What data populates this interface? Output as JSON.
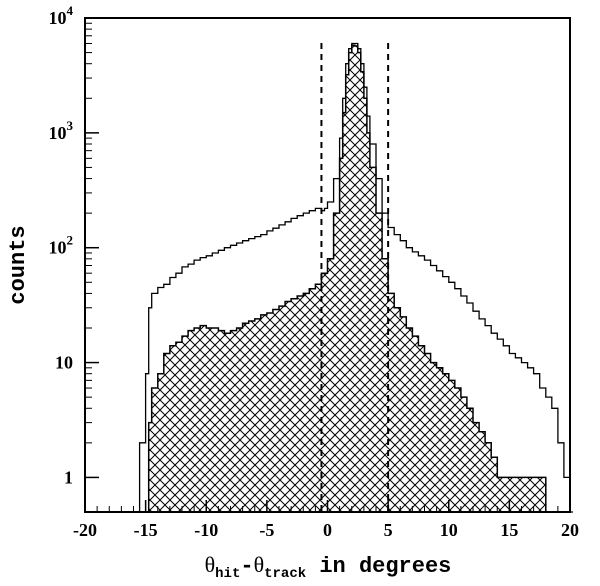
{
  "chart_data": {
    "type": "histogram",
    "title": "",
    "xlabel": {
      "theta1": "θ",
      "sub1": "hit",
      "dash": "-",
      "theta2": "θ",
      "sub2": "track",
      "suffix": " in degrees"
    },
    "ylabel": "counts",
    "xlim": [
      -20,
      20
    ],
    "ylim": [
      0.5,
      10000
    ],
    "yscale": "log",
    "x_tick_labels": [
      "-20",
      "-15",
      "-10",
      "-5",
      "0",
      "5",
      "10",
      "15",
      "20"
    ],
    "y_tick_labels": [
      {
        "value": 1,
        "base": "1",
        "exp": ""
      },
      {
        "value": 10,
        "base": "10",
        "exp": ""
      },
      {
        "value": 100,
        "base": "10",
        "exp": "2"
      },
      {
        "value": 1000,
        "base": "10",
        "exp": "3"
      },
      {
        "value": 10000,
        "base": "10",
        "exp": "4"
      }
    ],
    "cut_lines": [
      -0.5,
      5
    ],
    "bin_width": 0.25,
    "series": [
      {
        "fill": "none",
        "points": [
          [
            -16.0,
            0.5
          ],
          [
            -15.5,
            2
          ],
          [
            -15.0,
            8
          ],
          [
            -14.75,
            30
          ],
          [
            -14.5,
            40
          ],
          [
            -14.0,
            45
          ],
          [
            -13.5,
            48
          ],
          [
            -13.0,
            55
          ],
          [
            -12.5,
            60
          ],
          [
            -12.0,
            68
          ],
          [
            -11.5,
            72
          ],
          [
            -11.0,
            78
          ],
          [
            -10.5,
            82
          ],
          [
            -10.0,
            85
          ],
          [
            -9.5,
            90
          ],
          [
            -9.0,
            95
          ],
          [
            -8.5,
            100
          ],
          [
            -8.0,
            105
          ],
          [
            -7.5,
            110
          ],
          [
            -7.0,
            115
          ],
          [
            -6.5,
            120
          ],
          [
            -6.0,
            125
          ],
          [
            -5.5,
            130
          ],
          [
            -5.0,
            140
          ],
          [
            -4.5,
            148
          ],
          [
            -4.0,
            158
          ],
          [
            -3.5,
            168
          ],
          [
            -3.0,
            180
          ],
          [
            -2.5,
            190
          ],
          [
            -2.0,
            200
          ],
          [
            -1.5,
            210
          ],
          [
            -1.0,
            220
          ],
          [
            -0.5,
            210
          ],
          [
            -0.25,
            220
          ],
          [
            0.0,
            250
          ],
          [
            0.5,
            400
          ],
          [
            1.0,
            900
          ],
          [
            1.25,
            2000
          ],
          [
            1.5,
            4000
          ],
          [
            1.75,
            5400
          ],
          [
            2.0,
            6000
          ],
          [
            2.25,
            6000
          ],
          [
            2.5,
            5400
          ],
          [
            2.75,
            4000
          ],
          [
            3.0,
            2500
          ],
          [
            3.25,
            1400
          ],
          [
            3.5,
            800
          ],
          [
            4.0,
            400
          ],
          [
            4.5,
            200
          ],
          [
            5.0,
            150
          ],
          [
            5.5,
            130
          ],
          [
            6.0,
            115
          ],
          [
            6.5,
            100
          ],
          [
            7.0,
            92
          ],
          [
            7.5,
            85
          ],
          [
            8.0,
            78
          ],
          [
            8.5,
            70
          ],
          [
            9.0,
            63
          ],
          [
            9.5,
            56
          ],
          [
            10.0,
            50
          ],
          [
            10.5,
            44
          ],
          [
            11.0,
            38
          ],
          [
            11.5,
            33
          ],
          [
            12.0,
            28
          ],
          [
            12.5,
            24
          ],
          [
            13.0,
            21
          ],
          [
            13.5,
            18
          ],
          [
            14.0,
            16
          ],
          [
            14.5,
            14
          ],
          [
            15.0,
            12
          ],
          [
            15.5,
            11
          ],
          [
            16.0,
            10
          ],
          [
            16.5,
            9
          ],
          [
            17.0,
            8
          ],
          [
            17.5,
            6
          ],
          [
            18.0,
            5
          ],
          [
            18.5,
            4
          ],
          [
            19.0,
            2
          ],
          [
            19.5,
            1
          ],
          [
            20.0,
            0.5
          ]
        ]
      },
      {
        "fill": "crosshatch",
        "points": [
          [
            -15.0,
            0.5
          ],
          [
            -14.75,
            3
          ],
          [
            -14.5,
            6
          ],
          [
            -14.0,
            8
          ],
          [
            -13.5,
            12
          ],
          [
            -13.0,
            14
          ],
          [
            -12.5,
            15
          ],
          [
            -12.0,
            17
          ],
          [
            -11.5,
            19
          ],
          [
            -11.0,
            20
          ],
          [
            -10.5,
            21
          ],
          [
            -10.0,
            20
          ],
          [
            -9.5,
            20
          ],
          [
            -9.0,
            19
          ],
          [
            -8.5,
            18
          ],
          [
            -8.0,
            19
          ],
          [
            -7.5,
            20
          ],
          [
            -7.0,
            22
          ],
          [
            -6.5,
            23
          ],
          [
            -6.0,
            24
          ],
          [
            -5.5,
            26
          ],
          [
            -5.0,
            27
          ],
          [
            -4.5,
            29
          ],
          [
            -4.0,
            31
          ],
          [
            -3.5,
            34
          ],
          [
            -3.0,
            36
          ],
          [
            -2.5,
            38
          ],
          [
            -2.0,
            40
          ],
          [
            -1.5,
            44
          ],
          [
            -1.0,
            48
          ],
          [
            -0.5,
            60
          ],
          [
            0.0,
            80
          ],
          [
            0.5,
            200
          ],
          [
            1.0,
            600
          ],
          [
            1.25,
            1500
          ],
          [
            1.5,
            3200
          ],
          [
            1.75,
            5000
          ],
          [
            2.0,
            5800
          ],
          [
            2.25,
            5700
          ],
          [
            2.5,
            5000
          ],
          [
            2.75,
            3400
          ],
          [
            3.0,
            2000
          ],
          [
            3.25,
            1000
          ],
          [
            3.5,
            500
          ],
          [
            4.0,
            200
          ],
          [
            4.5,
            80
          ],
          [
            5.0,
            40
          ],
          [
            5.5,
            30
          ],
          [
            6.0,
            25
          ],
          [
            6.5,
            20
          ],
          [
            7.0,
            17
          ],
          [
            7.5,
            14
          ],
          [
            8.0,
            12
          ],
          [
            8.5,
            10
          ],
          [
            9.0,
            9
          ],
          [
            9.5,
            8
          ],
          [
            10.0,
            7
          ],
          [
            10.5,
            6
          ],
          [
            11.0,
            5
          ],
          [
            11.5,
            4
          ],
          [
            12.0,
            3
          ],
          [
            12.5,
            2.5
          ],
          [
            13.0,
            2
          ],
          [
            13.5,
            1.5
          ],
          [
            14.0,
            1
          ],
          [
            14.5,
            1
          ],
          [
            15.0,
            1
          ],
          [
            15.5,
            1
          ],
          [
            16.0,
            1
          ],
          [
            16.5,
            1
          ],
          [
            17.0,
            1
          ],
          [
            17.5,
            1
          ],
          [
            18.0,
            0.5
          ]
        ]
      }
    ]
  }
}
